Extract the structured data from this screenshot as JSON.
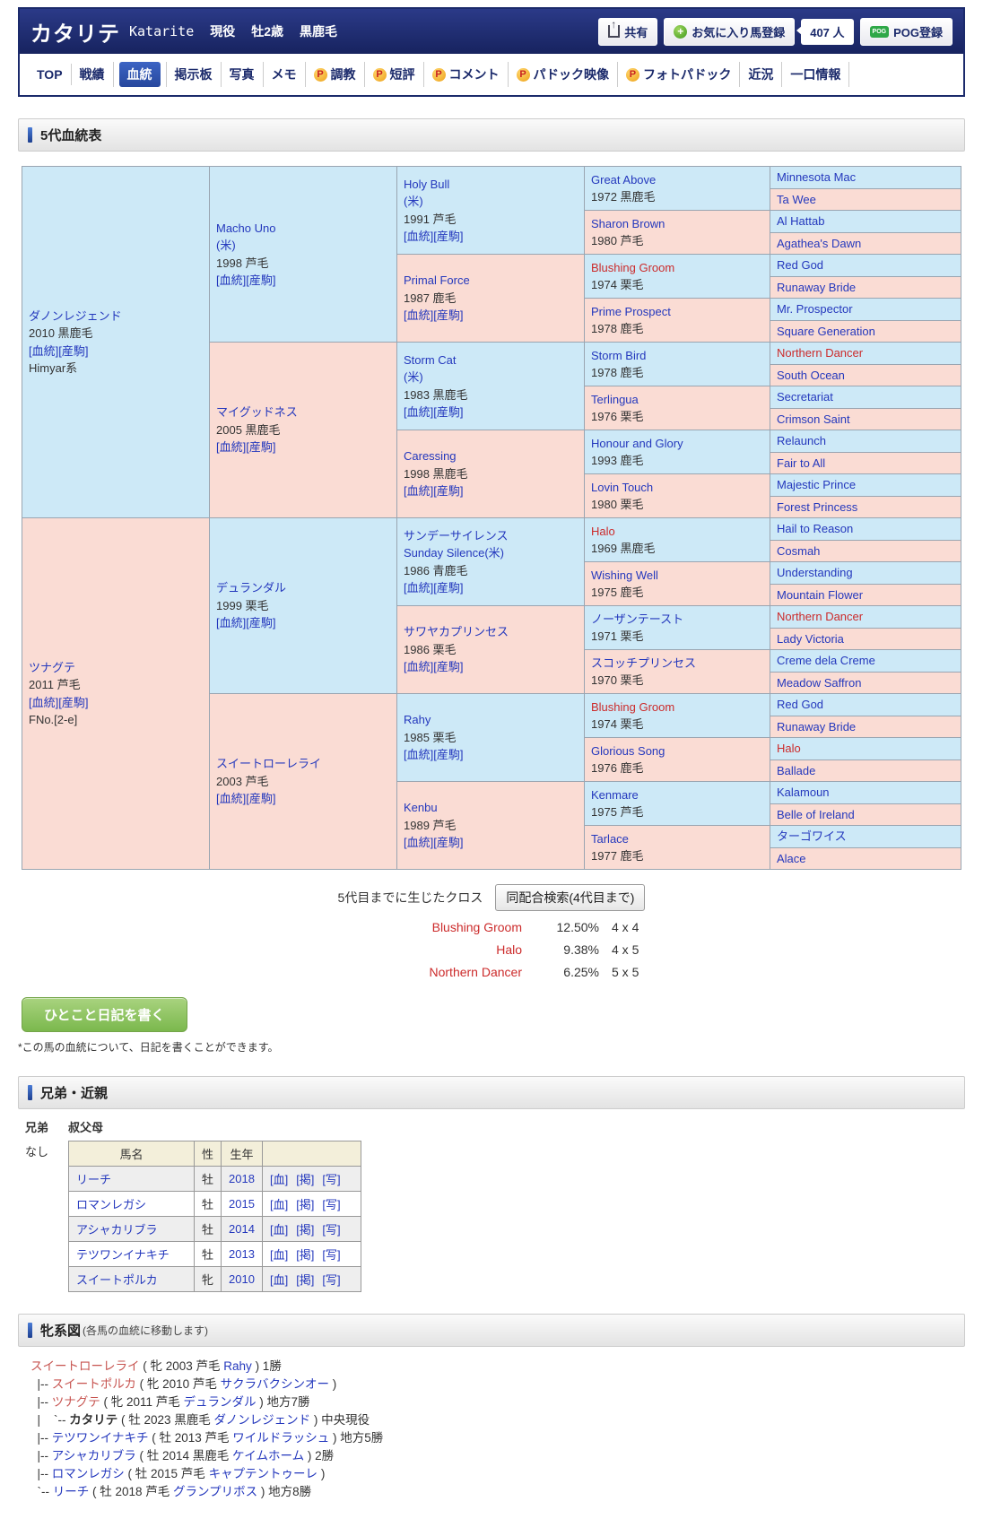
{
  "header": {
    "title": "カタリテ",
    "romaji": "Katarite",
    "status": "現役",
    "sex_age": "牡2歳",
    "coat": "黒鹿毛",
    "share_label": "共有",
    "favorite_label": "お気に入り馬登録",
    "favorite_count": "407 人",
    "pog_label": "POG登録",
    "pog_icon_text": "POG",
    "navy_color": "#1b2a6b"
  },
  "nav": {
    "items": [
      {
        "label": "TOP",
        "p": false,
        "selected": false
      },
      {
        "label": "戦績",
        "p": false,
        "selected": false
      },
      {
        "label": "血統",
        "p": false,
        "selected": true
      },
      {
        "label": "掲示板",
        "p": false,
        "selected": false
      },
      {
        "label": "写真",
        "p": false,
        "selected": false
      },
      {
        "label": "メモ",
        "p": false,
        "selected": false
      },
      {
        "label": "調教",
        "p": true,
        "selected": false
      },
      {
        "label": "短評",
        "p": true,
        "selected": false
      },
      {
        "label": "コメント",
        "p": true,
        "selected": false
      },
      {
        "label": "パドック映像",
        "p": true,
        "selected": false
      },
      {
        "label": "フォトパドック",
        "p": true,
        "selected": false
      },
      {
        "label": "近況",
        "p": false,
        "selected": false
      },
      {
        "label": "一口情報",
        "p": false,
        "selected": false
      }
    ]
  },
  "pedigree": {
    "section_title": "5代血統表",
    "link_blood": "[血統]",
    "link_offspring": "[産駒]",
    "male_color": "#cde9f7",
    "female_color": "#fadcd4",
    "inbreed_color": "#cc2b2b",
    "rows": [
      [
        {
          "s": 16,
          "b": "m",
          "n": "ダノンレジェンド",
          "y": "2010 黒鹿毛",
          "l": 1,
          "x": "Himyar系"
        },
        {
          "s": 8,
          "b": "m",
          "n": "Macho Uno",
          "n2": "(米)",
          "y": "1998 芦毛",
          "l": 1
        },
        {
          "s": 4,
          "b": "m",
          "n": "Holy Bull",
          "n2": "(米)",
          "y": "1991 芦毛",
          "l": 1
        },
        {
          "s": 2,
          "b": "m",
          "n": "Great Above",
          "y": "1972 黒鹿毛"
        },
        {
          "s": 1,
          "b": "m",
          "n": "Minnesota Mac"
        }
      ],
      [
        {
          "s": 1,
          "b": "f",
          "n": "Ta Wee"
        }
      ],
      [
        {
          "s": 2,
          "b": "f",
          "n": "Sharon Brown",
          "y": "1980 芦毛"
        },
        {
          "s": 1,
          "b": "m",
          "n": "Al Hattab"
        }
      ],
      [
        {
          "s": 1,
          "b": "f",
          "n": "Agathea's Dawn"
        }
      ],
      [
        {
          "s": 4,
          "b": "f",
          "n": "Primal Force",
          "y": "1987 鹿毛",
          "l": 1
        },
        {
          "s": 2,
          "b": "m",
          "n": "Blushing Groom",
          "r": 1,
          "y": "1974 栗毛"
        },
        {
          "s": 1,
          "b": "m",
          "n": "Red God"
        }
      ],
      [
        {
          "s": 1,
          "b": "f",
          "n": "Runaway Bride"
        }
      ],
      [
        {
          "s": 2,
          "b": "f",
          "n": "Prime Prospect",
          "y": "1978 鹿毛"
        },
        {
          "s": 1,
          "b": "m",
          "n": "Mr. Prospector"
        }
      ],
      [
        {
          "s": 1,
          "b": "f",
          "n": "Square Generation"
        }
      ],
      [
        {
          "s": 8,
          "b": "f",
          "n": "マイグッドネス",
          "y": "2005 黒鹿毛",
          "l": 1
        },
        {
          "s": 4,
          "b": "m",
          "n": "Storm Cat",
          "n2": "(米)",
          "y": "1983 黒鹿毛",
          "l": 1
        },
        {
          "s": 2,
          "b": "m",
          "n": "Storm Bird",
          "y": "1978 鹿毛"
        },
        {
          "s": 1,
          "b": "m",
          "n": "Northern Dancer",
          "r": 1
        }
      ],
      [
        {
          "s": 1,
          "b": "f",
          "n": "South Ocean"
        }
      ],
      [
        {
          "s": 2,
          "b": "f",
          "n": "Terlingua",
          "y": "1976 栗毛"
        },
        {
          "s": 1,
          "b": "m",
          "n": "Secretariat"
        }
      ],
      [
        {
          "s": 1,
          "b": "f",
          "n": "Crimson Saint"
        }
      ],
      [
        {
          "s": 4,
          "b": "f",
          "n": "Caressing",
          "y": "1998 黒鹿毛",
          "l": 1
        },
        {
          "s": 2,
          "b": "m",
          "n": "Honour and Glory",
          "y": "1993 鹿毛"
        },
        {
          "s": 1,
          "b": "m",
          "n": "Relaunch"
        }
      ],
      [
        {
          "s": 1,
          "b": "f",
          "n": "Fair to All"
        }
      ],
      [
        {
          "s": 2,
          "b": "f",
          "n": "Lovin Touch",
          "y": "1980 栗毛"
        },
        {
          "s": 1,
          "b": "m",
          "n": "Majestic Prince"
        }
      ],
      [
        {
          "s": 1,
          "b": "f",
          "n": "Forest Princess"
        }
      ],
      [
        {
          "s": 16,
          "b": "f",
          "n": "ツナグテ",
          "y": "2011 芦毛",
          "l": 1,
          "x": "FNo.[2-e]"
        },
        {
          "s": 8,
          "b": "m",
          "n": "デュランダル",
          "y": "1999 栗毛",
          "l": 1
        },
        {
          "s": 4,
          "b": "m",
          "n": "サンデーサイレンス",
          "n2": "Sunday Silence(米)",
          "y": "1986 青鹿毛",
          "l": 1
        },
        {
          "s": 2,
          "b": "m",
          "n": "Halo",
          "r": 1,
          "y": "1969 黒鹿毛"
        },
        {
          "s": 1,
          "b": "m",
          "n": "Hail to Reason"
        }
      ],
      [
        {
          "s": 1,
          "b": "f",
          "n": "Cosmah"
        }
      ],
      [
        {
          "s": 2,
          "b": "f",
          "n": "Wishing Well",
          "y": "1975 鹿毛"
        },
        {
          "s": 1,
          "b": "m",
          "n": "Understanding"
        }
      ],
      [
        {
          "s": 1,
          "b": "f",
          "n": "Mountain Flower"
        }
      ],
      [
        {
          "s": 4,
          "b": "f",
          "n": "サワヤカプリンセス",
          "y": "1986 栗毛",
          "l": 1
        },
        {
          "s": 2,
          "b": "m",
          "n": "ノーザンテースト",
          "y": "1971 栗毛"
        },
        {
          "s": 1,
          "b": "m",
          "n": "Northern Dancer",
          "r": 1
        }
      ],
      [
        {
          "s": 1,
          "b": "f",
          "n": "Lady Victoria"
        }
      ],
      [
        {
          "s": 2,
          "b": "f",
          "n": "スコッチプリンセス",
          "y": "1970 栗毛"
        },
        {
          "s": 1,
          "b": "m",
          "n": "Creme dela Creme"
        }
      ],
      [
        {
          "s": 1,
          "b": "f",
          "n": "Meadow Saffron"
        }
      ],
      [
        {
          "s": 8,
          "b": "f",
          "n": "スイートローレライ",
          "y": "2003 芦毛",
          "l": 1
        },
        {
          "s": 4,
          "b": "m",
          "n": "Rahy",
          "y": "1985 栗毛",
          "l": 1
        },
        {
          "s": 2,
          "b": "m",
          "n": "Blushing Groom",
          "r": 1,
          "y": "1974 栗毛"
        },
        {
          "s": 1,
          "b": "m",
          "n": "Red God"
        }
      ],
      [
        {
          "s": 1,
          "b": "f",
          "n": "Runaway Bride"
        }
      ],
      [
        {
          "s": 2,
          "b": "f",
          "n": "Glorious Song",
          "y": "1976 鹿毛"
        },
        {
          "s": 1,
          "b": "m",
          "n": "Halo",
          "r": 1
        }
      ],
      [
        {
          "s": 1,
          "b": "f",
          "n": "Ballade"
        }
      ],
      [
        {
          "s": 4,
          "b": "f",
          "n": "Kenbu",
          "y": "1989 芦毛",
          "l": 1
        },
        {
          "s": 2,
          "b": "m",
          "n": "Kenmare",
          "y": "1975 芦毛"
        },
        {
          "s": 1,
          "b": "m",
          "n": "Kalamoun"
        }
      ],
      [
        {
          "s": 1,
          "b": "f",
          "n": "Belle of Ireland"
        }
      ],
      [
        {
          "s": 2,
          "b": "f",
          "n": "Tarlace",
          "y": "1977 鹿毛"
        },
        {
          "s": 1,
          "b": "m",
          "n": "ターゴワイス"
        }
      ],
      [
        {
          "s": 1,
          "b": "f",
          "n": "Alace"
        }
      ]
    ]
  },
  "cross": {
    "label": "5代目までに生じたクロス",
    "button": "同配合検索(4代目まで)",
    "items": [
      {
        "name": "Blushing Groom",
        "pct": "12.50%",
        "cross": "4 x 4"
      },
      {
        "name": "Halo",
        "pct": "9.38%",
        "cross": "4 x 5"
      },
      {
        "name": "Northern Dancer",
        "pct": "6.25%",
        "cross": "5 x 5"
      }
    ]
  },
  "diary": {
    "button": "ひとこと日記を書く",
    "note": "*この馬の血統について、日記を書くことができます。"
  },
  "relatives": {
    "section_title": "兄弟・近親",
    "sibling_label": "兄弟",
    "sibling_value": "なし",
    "uncle_label": "叔父母",
    "table": {
      "headers": [
        "馬名",
        "性",
        "生年",
        ""
      ],
      "link_labels": [
        "[血]",
        "[掲]",
        "[写]"
      ],
      "rows": [
        {
          "name": "リーチ",
          "sex": "牡",
          "year": "2018"
        },
        {
          "name": "ロマンレガシ",
          "sex": "牡",
          "year": "2015"
        },
        {
          "name": "アシャカリブラ",
          "sex": "牡",
          "year": "2014"
        },
        {
          "name": "テツワンイナキチ",
          "sex": "牡",
          "year": "2013"
        },
        {
          "name": "スイートポルカ",
          "sex": "牝",
          "year": "2010"
        }
      ]
    }
  },
  "family_tree": {
    "section_title": "牝系図",
    "section_note": "(各馬の血統に移動します)",
    "lines": [
      [
        [
          "f",
          "スイートローレライ"
        ],
        [
          "t",
          " ( 牝 2003 芦毛 "
        ],
        [
          "m",
          "Rahy"
        ],
        [
          "t",
          " ) 1勝"
        ]
      ],
      [
        [
          "t",
          "  |-- "
        ],
        [
          "f",
          "スイートポルカ"
        ],
        [
          "t",
          " ( 牝 2010 芦毛 "
        ],
        [
          "m",
          "サクラバクシンオー"
        ],
        [
          "t",
          " )"
        ]
      ],
      [
        [
          "t",
          "  |-- "
        ],
        [
          "f",
          "ツナグテ"
        ],
        [
          "t",
          " ( 牝 2011 芦毛 "
        ],
        [
          "m",
          "デュランダル"
        ],
        [
          "t",
          " ) 地方7勝"
        ]
      ],
      [
        [
          "t",
          "  |    `-- "
        ],
        [
          "b",
          "カタリテ"
        ],
        [
          "t",
          " ( 牡 2023 黒鹿毛 "
        ],
        [
          "m",
          "ダノンレジェンド"
        ],
        [
          "t",
          " ) 中央現役"
        ]
      ],
      [
        [
          "t",
          "  |-- "
        ],
        [
          "m",
          "テツワンイナキチ"
        ],
        [
          "t",
          " ( 牡 2013 芦毛 "
        ],
        [
          "m",
          "ワイルドラッシュ"
        ],
        [
          "t",
          " ) 地方5勝"
        ]
      ],
      [
        [
          "t",
          "  |-- "
        ],
        [
          "m",
          "アシャカリブラ"
        ],
        [
          "t",
          " ( 牡 2014 黒鹿毛 "
        ],
        [
          "m",
          "ケイムホーム"
        ],
        [
          "t",
          " ) 2勝"
        ]
      ],
      [
        [
          "t",
          "  |-- "
        ],
        [
          "m",
          "ロマンレガシ"
        ],
        [
          "t",
          " ( 牡 2015 芦毛 "
        ],
        [
          "m",
          "キャプテントゥーレ"
        ],
        [
          "t",
          " )"
        ]
      ],
      [
        [
          "t",
          "  `-- "
        ],
        [
          "m",
          "リーチ"
        ],
        [
          "t",
          " ( 牡 2018 芦毛 "
        ],
        [
          "m",
          "グランプリボス"
        ],
        [
          "t",
          " ) 地方8勝"
        ]
      ]
    ]
  }
}
